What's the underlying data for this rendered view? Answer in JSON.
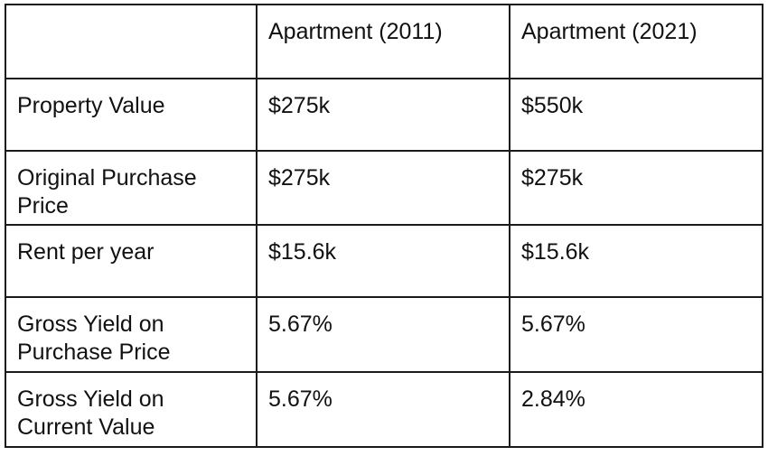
{
  "table": {
    "headers": [
      "",
      "Apartment (2011)",
      "Apartment (2021)"
    ],
    "rows": [
      {
        "label": "Property Value",
        "values": [
          "$275k",
          "$550k"
        ]
      },
      {
        "label": "Original Purchase Price",
        "values": [
          "$275k",
          "$275k"
        ]
      },
      {
        "label": "Rent per year",
        "values": [
          "$15.6k",
          "$15.6k"
        ]
      },
      {
        "label": "Gross Yield on Purchase Price",
        "values": [
          "5.67%",
          "5.67%"
        ]
      },
      {
        "label": "Gross Yield on Current Value",
        "values": [
          "5.67%",
          "2.84%"
        ]
      }
    ]
  }
}
